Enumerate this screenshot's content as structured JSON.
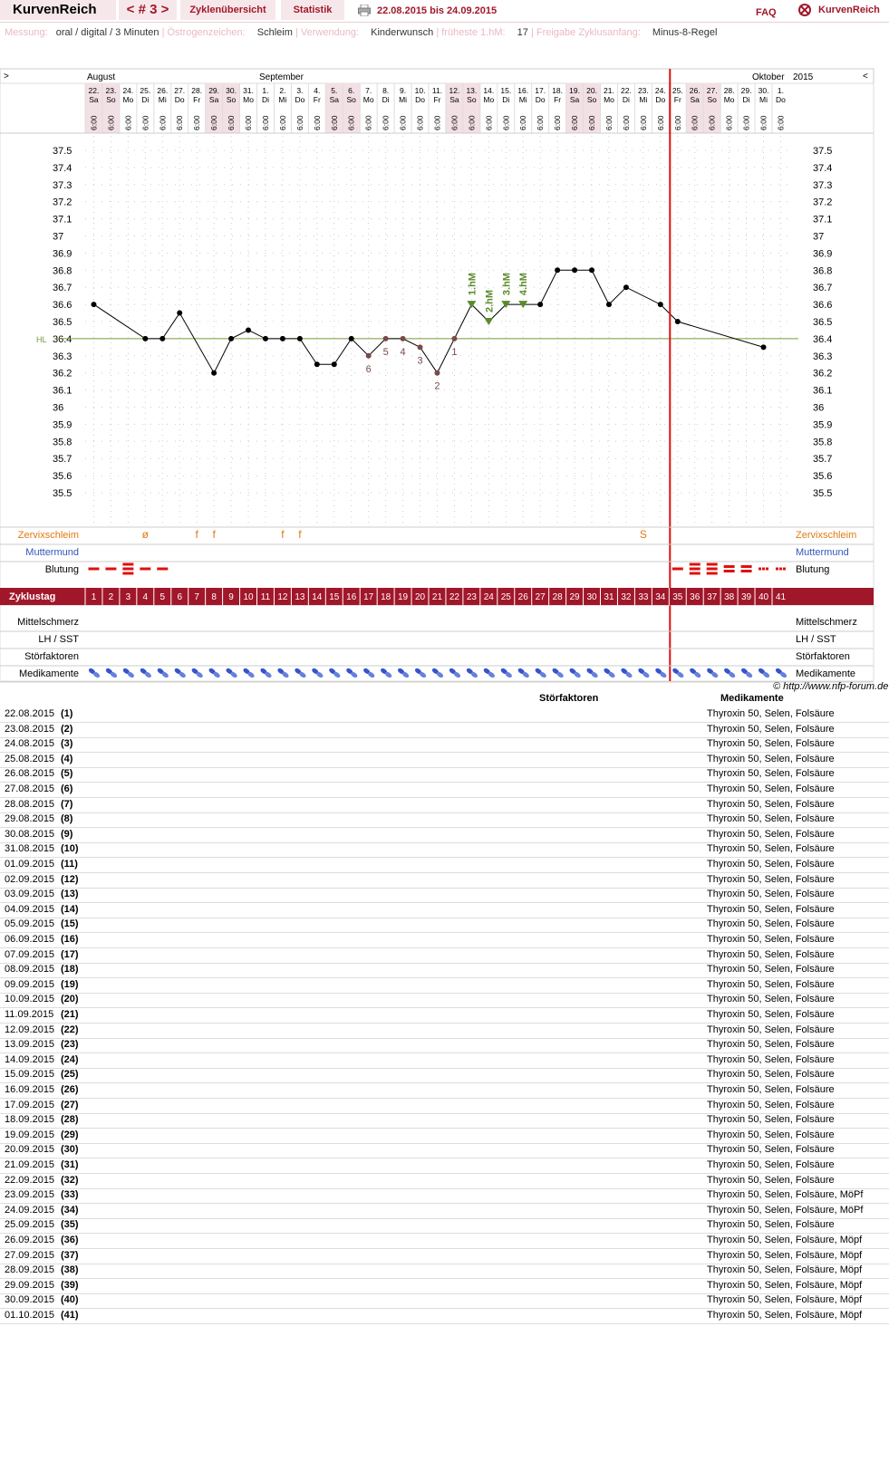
{
  "header": {
    "brand": "KurvenReich",
    "cycle": "< # 3 >",
    "tab_overview": "Zyklenübersicht",
    "tab_stats": "Statistik",
    "period": "22.08.2015 bis 24.09.2015",
    "faq": "FAQ",
    "logo": "KurvenReich"
  },
  "info": {
    "messung_label": "Messung:",
    "messung_value": "oral / digital / 3 Minuten",
    "oestrogen_label": "Östrogenzeichen:",
    "oestrogen_value": "Schleim",
    "verwendung_label": "Verwendung:",
    "verwendung_value": "Kinderwunsch",
    "hm_label": "früheste 1.hM:",
    "hm_value": "17",
    "freigabe_label": "Freigabe Zyklusanfang:",
    "freigabe_value": "Minus-8-Regel"
  },
  "chart_data": {
    "type": "line",
    "months": {
      "left_marker": ">",
      "right_marker": "<",
      "august": "August",
      "september": "September",
      "oktober": "Oktober",
      "year": "2015"
    },
    "dates": [
      "22.",
      "23.",
      "24.",
      "25.",
      "26.",
      "27.",
      "28.",
      "29.",
      "30.",
      "31.",
      "1.",
      "2.",
      "3.",
      "4.",
      "5.",
      "6.",
      "7.",
      "8.",
      "9.",
      "10.",
      "11.",
      "12.",
      "13.",
      "14.",
      "15.",
      "16.",
      "17.",
      "18.",
      "19.",
      "20.",
      "21.",
      "22.",
      "23.",
      "24.",
      "25.",
      "26.",
      "27.",
      "28.",
      "29.",
      "30.",
      "1."
    ],
    "weekdays": [
      "Sa",
      "So",
      "Mo",
      "Di",
      "Mi",
      "Do",
      "Fr",
      "Sa",
      "So",
      "Mo",
      "Di",
      "Mi",
      "Do",
      "Fr",
      "Sa",
      "So",
      "Mo",
      "Di",
      "Mi",
      "Do",
      "Fr",
      "Sa",
      "So",
      "Mo",
      "Di",
      "Mi",
      "Do",
      "Fr",
      "Sa",
      "So",
      "Mo",
      "Di",
      "Mi",
      "Do",
      "Fr",
      "Sa",
      "So",
      "Mo",
      "Di",
      "Mi",
      "Do"
    ],
    "time": "6:00",
    "cycle_days": [
      "1",
      "2",
      "3",
      "4",
      "5",
      "6",
      "7",
      "8",
      "9",
      "10",
      "11",
      "12",
      "13",
      "14",
      "15",
      "16",
      "17",
      "18",
      "19",
      "20",
      "21",
      "22",
      "23",
      "24",
      "25",
      "26",
      "27",
      "28",
      "29",
      "30",
      "31",
      "32",
      "33",
      "34",
      "35",
      "36",
      "37",
      "38",
      "39",
      "40",
      "41"
    ],
    "temperatures": [
      36.6,
      null,
      null,
      36.4,
      36.4,
      36.55,
      null,
      36.2,
      36.4,
      36.45,
      36.4,
      36.4,
      36.4,
      36.25,
      36.25,
      36.4,
      36.3,
      36.4,
      36.4,
      36.35,
      36.2,
      36.4,
      36.6,
      36.5,
      36.6,
      36.6,
      36.6,
      36.8,
      36.8,
      36.8,
      36.6,
      36.7,
      null,
      36.6,
      36.5,
      null,
      null,
      null,
      null,
      36.35,
      null
    ],
    "y_ticks": [
      "37.5",
      "37.4",
      "37.3",
      "37.2",
      "37.1",
      "37",
      "36.9",
      "36.8",
      "36.7",
      "36.6",
      "36.5",
      "36.4",
      "36.3",
      "36.2",
      "36.1",
      "36",
      "35.9",
      "35.8",
      "35.7",
      "35.6",
      "35.5"
    ],
    "ylim": [
      35.4,
      37.6
    ],
    "coverline_label": "HL",
    "coverline": 36.4,
    "lower_labels": [
      {
        "day": 17,
        "label": "6"
      },
      {
        "day": 18,
        "label": "5"
      },
      {
        "day": 19,
        "label": "4"
      },
      {
        "day": 20,
        "label": "3"
      },
      {
        "day": 21,
        "label": "2"
      },
      {
        "day": 22,
        "label": "1"
      }
    ],
    "higher_labels": [
      {
        "day": 23,
        "label": "1.hM"
      },
      {
        "day": 24,
        "label": "2.hM"
      },
      {
        "day": 25,
        "label": "3.hM"
      },
      {
        "day": 26,
        "label": "4.hM"
      }
    ],
    "cycle_end_after_day": 34
  },
  "rows": {
    "zervix_label": "Zervixschleim",
    "muttermund_label": "Muttermund",
    "blutung_label": "Blutung",
    "zyklustag_label": "Zyklustag",
    "mittelschmerz_label": "Mittelschmerz",
    "lh_label": "LH / SST",
    "stoer_label": "Störfaktoren",
    "medi_label": "Medikamente",
    "zervix": [
      {
        "day": 4,
        "v": "ø"
      },
      {
        "day": 7,
        "v": "f"
      },
      {
        "day": 8,
        "v": "f"
      },
      {
        "day": 12,
        "v": "f"
      },
      {
        "day": 13,
        "v": "f"
      },
      {
        "day": 33,
        "v": "S"
      }
    ],
    "blutung": [
      {
        "day": 1,
        "lvl": 1
      },
      {
        "day": 2,
        "lvl": 1
      },
      {
        "day": 3,
        "lvl": 3
      },
      {
        "day": 4,
        "lvl": 1
      },
      {
        "day": 5,
        "lvl": 1
      },
      {
        "day": 35,
        "lvl": 1
      },
      {
        "day": 36,
        "lvl": 3
      },
      {
        "day": 37,
        "lvl": 3
      },
      {
        "day": 38,
        "lvl": 2
      },
      {
        "day": 39,
        "lvl": 2
      },
      {
        "day": 40,
        "lvl": 0
      },
      {
        "day": 41,
        "lvl": 0
      }
    ]
  },
  "colors": {
    "accent": "#a1172a",
    "line": "#000000",
    "cover": "#7a9a3a",
    "hm": "#5b8a2a",
    "low": "#7a4a4a",
    "zervix": "#e07a10",
    "blut": "#dd1111",
    "muttermund": "#3355bb",
    "redline": "#dd1111"
  },
  "copyright": "© http://www.nfp-forum.de",
  "table": {
    "col_stoer": "Störfaktoren",
    "col_medi": "Medikamente",
    "rows": [
      [
        "22.08.2015",
        "(1)",
        "Thyroxin 50, Selen, Folsäure"
      ],
      [
        "23.08.2015",
        "(2)",
        "Thyroxin 50, Selen, Folsäure"
      ],
      [
        "24.08.2015",
        "(3)",
        "Thyroxin 50, Selen, Folsäure"
      ],
      [
        "25.08.2015",
        "(4)",
        "Thyroxin 50, Selen, Folsäure"
      ],
      [
        "26.08.2015",
        "(5)",
        "Thyroxin 50, Selen, Folsäure"
      ],
      [
        "27.08.2015",
        "(6)",
        "Thyroxin 50, Selen, Folsäure"
      ],
      [
        "28.08.2015",
        "(7)",
        "Thyroxin 50, Selen, Folsäure"
      ],
      [
        "29.08.2015",
        "(8)",
        "Thyroxin 50, Selen, Folsäure"
      ],
      [
        "30.08.2015",
        "(9)",
        "Thyroxin 50, Selen, Folsäure"
      ],
      [
        "31.08.2015",
        "(10)",
        "Thyroxin 50, Selen, Folsäure"
      ],
      [
        "01.09.2015",
        "(11)",
        "Thyroxin 50, Selen, Folsäure"
      ],
      [
        "02.09.2015",
        "(12)",
        "Thyroxin 50, Selen, Folsäure"
      ],
      [
        "03.09.2015",
        "(13)",
        "Thyroxin 50, Selen, Folsäure"
      ],
      [
        "04.09.2015",
        "(14)",
        "Thyroxin 50, Selen, Folsäure"
      ],
      [
        "05.09.2015",
        "(15)",
        "Thyroxin 50, Selen, Folsäure"
      ],
      [
        "06.09.2015",
        "(16)",
        "Thyroxin 50, Selen, Folsäure"
      ],
      [
        "07.09.2015",
        "(17)",
        "Thyroxin 50, Selen, Folsäure"
      ],
      [
        "08.09.2015",
        "(18)",
        "Thyroxin 50, Selen, Folsäure"
      ],
      [
        "09.09.2015",
        "(19)",
        "Thyroxin 50, Selen, Folsäure"
      ],
      [
        "10.09.2015",
        "(20)",
        "Thyroxin 50, Selen, Folsäure"
      ],
      [
        "11.09.2015",
        "(21)",
        "Thyroxin 50, Selen, Folsäure"
      ],
      [
        "12.09.2015",
        "(22)",
        "Thyroxin 50, Selen, Folsäure"
      ],
      [
        "13.09.2015",
        "(23)",
        "Thyroxin 50, Selen, Folsäure"
      ],
      [
        "14.09.2015",
        "(24)",
        "Thyroxin 50, Selen, Folsäure"
      ],
      [
        "15.09.2015",
        "(25)",
        "Thyroxin 50, Selen, Folsäure"
      ],
      [
        "16.09.2015",
        "(26)",
        "Thyroxin 50, Selen, Folsäure"
      ],
      [
        "17.09.2015",
        "(27)",
        "Thyroxin 50, Selen, Folsäure"
      ],
      [
        "18.09.2015",
        "(28)",
        "Thyroxin 50, Selen, Folsäure"
      ],
      [
        "19.09.2015",
        "(29)",
        "Thyroxin 50, Selen, Folsäure"
      ],
      [
        "20.09.2015",
        "(30)",
        "Thyroxin 50, Selen, Folsäure"
      ],
      [
        "21.09.2015",
        "(31)",
        "Thyroxin 50, Selen, Folsäure"
      ],
      [
        "22.09.2015",
        "(32)",
        "Thyroxin 50, Selen, Folsäure"
      ],
      [
        "23.09.2015",
        "(33)",
        "Thyroxin 50, Selen, Folsäure, MöPf"
      ],
      [
        "24.09.2015",
        "(34)",
        "Thyroxin 50, Selen, Folsäure, MöPf"
      ],
      [
        "25.09.2015",
        "(35)",
        "Thyroxin 50, Selen, Folsäure"
      ],
      [
        "26.09.2015",
        "(36)",
        "Thyroxin 50, Selen, Folsäure, Möpf"
      ],
      [
        "27.09.2015",
        "(37)",
        "Thyroxin 50, Selen, Folsäure, Möpf"
      ],
      [
        "28.09.2015",
        "(38)",
        "Thyroxin 50, Selen, Folsäure, Möpf"
      ],
      [
        "29.09.2015",
        "(39)",
        "Thyroxin 50, Selen, Folsäure, Möpf"
      ],
      [
        "30.09.2015",
        "(40)",
        "Thyroxin 50, Selen, Folsäure, Möpf"
      ],
      [
        "01.10.2015",
        "(41)",
        "Thyroxin 50, Selen, Folsäure, Möpf"
      ]
    ]
  }
}
